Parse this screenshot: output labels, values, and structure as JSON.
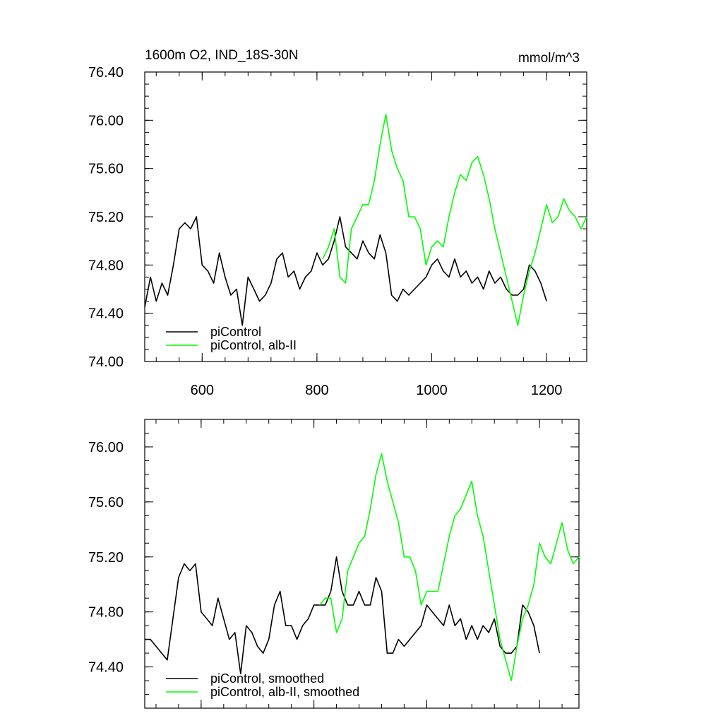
{
  "chart_data": [
    {
      "type": "line",
      "title": "1600m O2, IND_18S-30N",
      "units": "mmol/m^3",
      "xlim": [
        500,
        1270
      ],
      "ylim": [
        74.0,
        76.4
      ],
      "xticks": [
        600,
        800,
        1000,
        1200
      ],
      "xtick_labels": [
        "600",
        "800",
        "1000",
        "1200"
      ],
      "yticks": [
        74.0,
        74.4,
        74.8,
        75.2,
        75.6,
        76.0,
        76.4
      ],
      "ytick_labels": [
        "74.00",
        "74.40",
        "74.80",
        "75.20",
        "75.60",
        "76.00",
        "76.40"
      ],
      "legend_location": "lower-left",
      "series": [
        {
          "name": "piControl",
          "color": "#000000",
          "x": [
            500,
            510,
            520,
            530,
            540,
            550,
            560,
            570,
            580,
            590,
            600,
            610,
            620,
            630,
            640,
            650,
            660,
            670,
            680,
            690,
            700,
            710,
            720,
            730,
            740,
            750,
            760,
            770,
            780,
            790,
            800,
            810,
            820,
            830,
            840,
            850,
            860,
            870,
            880,
            890,
            900,
            910,
            920,
            930,
            940,
            950,
            960,
            970,
            980,
            990,
            1000,
            1010,
            1020,
            1030,
            1040,
            1050,
            1060,
            1070,
            1080,
            1090,
            1100,
            1110,
            1120,
            1130,
            1140,
            1150,
            1160,
            1170,
            1180,
            1190,
            1200
          ],
          "y": [
            74.45,
            74.7,
            74.5,
            74.65,
            74.55,
            74.8,
            75.1,
            75.15,
            75.1,
            75.2,
            74.8,
            74.75,
            74.65,
            74.9,
            74.7,
            74.55,
            74.6,
            74.3,
            74.7,
            74.6,
            74.5,
            74.55,
            74.65,
            74.85,
            74.9,
            74.7,
            74.75,
            74.6,
            74.7,
            74.75,
            74.9,
            74.8,
            74.85,
            75.0,
            75.2,
            74.95,
            74.9,
            74.85,
            75.0,
            74.9,
            74.85,
            75.05,
            74.9,
            74.55,
            74.5,
            74.6,
            74.55,
            74.6,
            74.65,
            74.7,
            74.8,
            74.85,
            74.75,
            74.7,
            74.85,
            74.7,
            74.75,
            74.65,
            74.7,
            74.6,
            74.75,
            74.65,
            74.7,
            74.6,
            74.55,
            74.55,
            74.6,
            74.8,
            74.75,
            74.65,
            74.5
          ]
        },
        {
          "name": "piControl, alb-II",
          "color": "#00ff00",
          "x": [
            810,
            820,
            830,
            840,
            850,
            860,
            870,
            880,
            890,
            900,
            910,
            920,
            930,
            940,
            950,
            960,
            970,
            980,
            990,
            1000,
            1010,
            1020,
            1030,
            1040,
            1050,
            1060,
            1070,
            1080,
            1090,
            1100,
            1110,
            1120,
            1130,
            1140,
            1150,
            1160,
            1170,
            1180,
            1190,
            1200,
            1210,
            1220,
            1230,
            1240,
            1250,
            1260,
            1270
          ],
          "y": [
            74.85,
            74.95,
            75.1,
            74.7,
            74.65,
            75.1,
            75.2,
            75.3,
            75.3,
            75.5,
            75.8,
            76.05,
            75.75,
            75.6,
            75.5,
            75.2,
            75.2,
            75.1,
            74.8,
            74.95,
            75.0,
            74.95,
            75.2,
            75.4,
            75.55,
            75.5,
            75.65,
            75.7,
            75.55,
            75.35,
            75.1,
            74.9,
            74.7,
            74.5,
            74.3,
            74.55,
            74.75,
            74.9,
            75.1,
            75.3,
            75.15,
            75.2,
            75.35,
            75.25,
            75.2,
            75.1,
            75.2
          ]
        }
      ]
    },
    {
      "type": "line",
      "xlim": [
        500,
        1270
      ],
      "ylim": [
        74.1,
        76.2
      ],
      "xticks": [
        600,
        800,
        1000,
        1200
      ],
      "yticks": [
        74.4,
        74.8,
        75.2,
        75.6,
        76.0
      ],
      "ytick_labels": [
        "74.40",
        "74.80",
        "75.20",
        "75.60",
        "76.00"
      ],
      "legend_location": "lower-left",
      "series": [
        {
          "name": "piControl, smoothed",
          "color": "#000000",
          "x": [
            500,
            510,
            520,
            530,
            540,
            550,
            560,
            570,
            580,
            590,
            600,
            610,
            620,
            630,
            640,
            650,
            660,
            670,
            680,
            690,
            700,
            710,
            720,
            730,
            740,
            750,
            760,
            770,
            780,
            790,
            800,
            810,
            820,
            830,
            840,
            850,
            860,
            870,
            880,
            890,
            900,
            910,
            920,
            930,
            940,
            950,
            960,
            970,
            980,
            990,
            1000,
            1010,
            1020,
            1030,
            1040,
            1050,
            1060,
            1070,
            1080,
            1090,
            1100,
            1110,
            1120,
            1130,
            1140,
            1150,
            1160,
            1170,
            1180,
            1190,
            1200
          ],
          "y": [
            74.6,
            74.6,
            74.55,
            74.5,
            74.45,
            74.75,
            75.05,
            75.15,
            75.1,
            75.15,
            74.8,
            74.75,
            74.7,
            74.9,
            74.75,
            74.6,
            74.65,
            74.35,
            74.7,
            74.65,
            74.55,
            74.5,
            74.6,
            74.85,
            74.95,
            74.7,
            74.7,
            74.6,
            74.7,
            74.75,
            74.85,
            74.85,
            74.85,
            74.95,
            75.2,
            74.95,
            74.85,
            74.85,
            74.95,
            74.85,
            74.85,
            75.05,
            74.95,
            74.5,
            74.5,
            74.6,
            74.55,
            74.6,
            74.65,
            74.7,
            74.85,
            74.8,
            74.75,
            74.7,
            74.85,
            74.7,
            74.75,
            74.6,
            74.7,
            74.6,
            74.7,
            74.65,
            74.75,
            74.55,
            74.5,
            74.5,
            74.55,
            74.85,
            74.8,
            74.7,
            74.5
          ]
        },
        {
          "name": "piControl, alb-II, smoothed",
          "color": "#00ff00",
          "x": [
            810,
            820,
            830,
            840,
            850,
            860,
            870,
            880,
            890,
            900,
            910,
            920,
            930,
            940,
            950,
            960,
            970,
            980,
            990,
            1000,
            1010,
            1020,
            1030,
            1040,
            1050,
            1060,
            1070,
            1080,
            1090,
            1100,
            1110,
            1120,
            1130,
            1140,
            1150,
            1160,
            1170,
            1180,
            1190,
            1200,
            1210,
            1220,
            1230,
            1240,
            1250,
            1260,
            1270
          ],
          "y": [
            74.85,
            74.9,
            74.9,
            74.65,
            74.75,
            75.1,
            75.2,
            75.3,
            75.35,
            75.55,
            75.8,
            75.95,
            75.75,
            75.6,
            75.45,
            75.2,
            75.2,
            75.1,
            74.85,
            74.95,
            74.95,
            74.95,
            75.15,
            75.35,
            75.5,
            75.55,
            75.65,
            75.75,
            75.5,
            75.35,
            75.1,
            74.85,
            74.6,
            74.45,
            74.3,
            74.55,
            74.75,
            74.85,
            75.0,
            75.3,
            75.2,
            75.15,
            75.3,
            75.45,
            75.25,
            75.15,
            75.2
          ]
        }
      ]
    }
  ]
}
